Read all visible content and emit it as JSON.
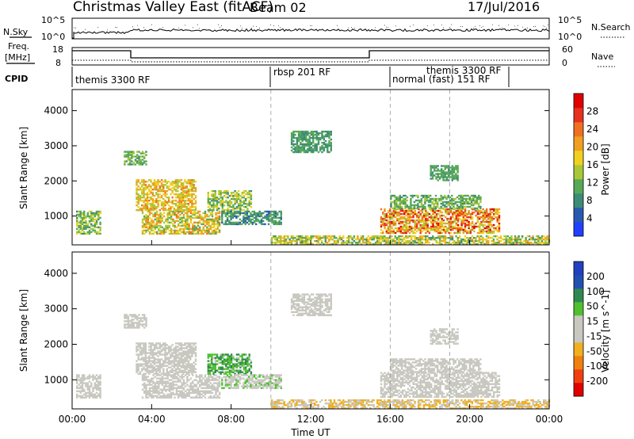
{
  "header": {
    "title": "Christmas Valley East (fitACF)",
    "beam": "Beam 02",
    "date": "17/Jul/2016"
  },
  "top_panels": {
    "nsky_label": "N.Sky",
    "nsky_ticks": [
      "10^5",
      "10^0"
    ],
    "nsearch_label": "N.Search",
    "nsearch_ticks": [
      "10^5",
      "10^0"
    ],
    "freq_label_1": "Freq.",
    "freq_label_2": "[MHz]",
    "freq_ticks": [
      "18",
      "8"
    ],
    "nave_label": "Nave",
    "nave_ticks": [
      "60",
      "0"
    ],
    "cpid_label": "CPID"
  },
  "cpid_segments": [
    {
      "label": "themis 3300 RF",
      "start": 0.0
    },
    {
      "label": "rbsp 201 RF",
      "start": 10.0
    },
    {
      "label": "normal (fast) 151 RF",
      "start": 16.0
    },
    {
      "label": "themis 3300 RF",
      "start": 19.0
    }
  ],
  "colors": {
    "power": [
      "#2040ff",
      "#2a5ab0",
      "#3c8c78",
      "#58a858",
      "#a8c838",
      "#f0d020",
      "#f0a020",
      "#f07020",
      "#e83020",
      "#e00000"
    ],
    "velocity": [
      "#e00000",
      "#f04010",
      "#f08010",
      "#f0b020",
      "#c8c8c0",
      "#c8c8c0",
      "#50c030",
      "#308850",
      "#2050b0",
      "#2040c0"
    ]
  },
  "chart_data": [
    {
      "type": "heatmap",
      "panel": "power",
      "xlabel": "Time UT",
      "ylabel": "Slant Range [km]",
      "xlim": [
        0,
        24
      ],
      "ylim": [
        180,
        4600
      ],
      "x_ticks": [
        "00:00",
        "04:00",
        "08:00",
        "12:00",
        "16:00",
        "20:00",
        "00:00"
      ],
      "y_ticks": [
        1000,
        2000,
        3000,
        4000
      ],
      "colorbar": {
        "label": "Power [dB]",
        "ticks": [
          4,
          8,
          12,
          16,
          20,
          24,
          28
        ],
        "range": [
          0,
          30
        ]
      },
      "regions": [
        {
          "t": [
            0.2,
            1.4
          ],
          "r": [
            480,
            1150
          ],
          "v": [
            8,
            16
          ]
        },
        {
          "t": [
            2.6,
            3.7
          ],
          "r": [
            2450,
            2850
          ],
          "v": [
            8,
            14
          ]
        },
        {
          "t": [
            3.2,
            6.2
          ],
          "r": [
            1150,
            2050
          ],
          "v": [
            12,
            22
          ]
        },
        {
          "t": [
            3.5,
            7.4
          ],
          "r": [
            480,
            1150
          ],
          "v": [
            10,
            22
          ]
        },
        {
          "t": [
            6.8,
            9.0
          ],
          "r": [
            1150,
            1700
          ],
          "v": [
            8,
            18
          ]
        },
        {
          "t": [
            7.5,
            10.5
          ],
          "r": [
            750,
            1150
          ],
          "v": [
            5,
            12
          ]
        },
        {
          "t": [
            11.0,
            13.0
          ],
          "r": [
            2800,
            3400
          ],
          "v": [
            6,
            12
          ]
        },
        {
          "t": [
            15.5,
            21.5
          ],
          "r": [
            500,
            1200
          ],
          "v": [
            12,
            28
          ]
        },
        {
          "t": [
            16.0,
            20.5
          ],
          "r": [
            1200,
            1600
          ],
          "v": [
            8,
            14
          ]
        },
        {
          "t": [
            18.0,
            19.4
          ],
          "r": [
            2000,
            2450
          ],
          "v": [
            8,
            12
          ]
        },
        {
          "t": [
            10.0,
            24.0
          ],
          "r": [
            180,
            420
          ],
          "v": [
            8,
            20
          ]
        }
      ]
    },
    {
      "type": "heatmap",
      "panel": "velocity",
      "xlabel": "Time UT",
      "ylabel": "Slant Range [km]",
      "xlim": [
        0,
        24
      ],
      "ylim": [
        180,
        4600
      ],
      "x_ticks": [
        "00:00",
        "04:00",
        "08:00",
        "12:00",
        "16:00",
        "20:00",
        "00:00"
      ],
      "y_ticks": [
        1000,
        2000,
        3000,
        4000
      ],
      "colorbar": {
        "label": "Velocity [m s^-1]",
        "ticks": [
          -200,
          -100,
          -50,
          -15,
          15,
          50,
          100,
          200
        ],
        "range": [
          -250,
          250
        ]
      },
      "regions": [
        {
          "t": [
            0.2,
            1.4
          ],
          "r": [
            480,
            1150
          ],
          "v": [
            -10,
            10
          ]
        },
        {
          "t": [
            2.6,
            3.7
          ],
          "r": [
            2450,
            2850
          ],
          "v": [
            -10,
            10
          ]
        },
        {
          "t": [
            3.2,
            6.2
          ],
          "r": [
            1150,
            2050
          ],
          "v": [
            -30,
            10
          ]
        },
        {
          "t": [
            3.5,
            7.4
          ],
          "r": [
            480,
            1150
          ],
          "v": [
            15,
            50
          ]
        },
        {
          "t": [
            6.8,
            9.0
          ],
          "r": [
            1150,
            1700
          ],
          "v": [
            30,
            150
          ]
        },
        {
          "t": [
            7.5,
            10.5
          ],
          "r": [
            750,
            1150
          ],
          "v": [
            15,
            60
          ]
        },
        {
          "t": [
            11.0,
            13.0
          ],
          "r": [
            2800,
            3400
          ],
          "v": [
            -40,
            10
          ]
        },
        {
          "t": [
            15.5,
            21.5
          ],
          "r": [
            500,
            1200
          ],
          "v": [
            -12,
            12
          ]
        },
        {
          "t": [
            16.0,
            20.5
          ],
          "r": [
            1200,
            1600
          ],
          "v": [
            -12,
            12
          ]
        },
        {
          "t": [
            18.0,
            19.4
          ],
          "r": [
            2000,
            2450
          ],
          "v": [
            -12,
            12
          ]
        },
        {
          "t": [
            10.0,
            24.0
          ],
          "r": [
            180,
            420
          ],
          "v": [
            -80,
            -20
          ]
        }
      ]
    }
  ]
}
